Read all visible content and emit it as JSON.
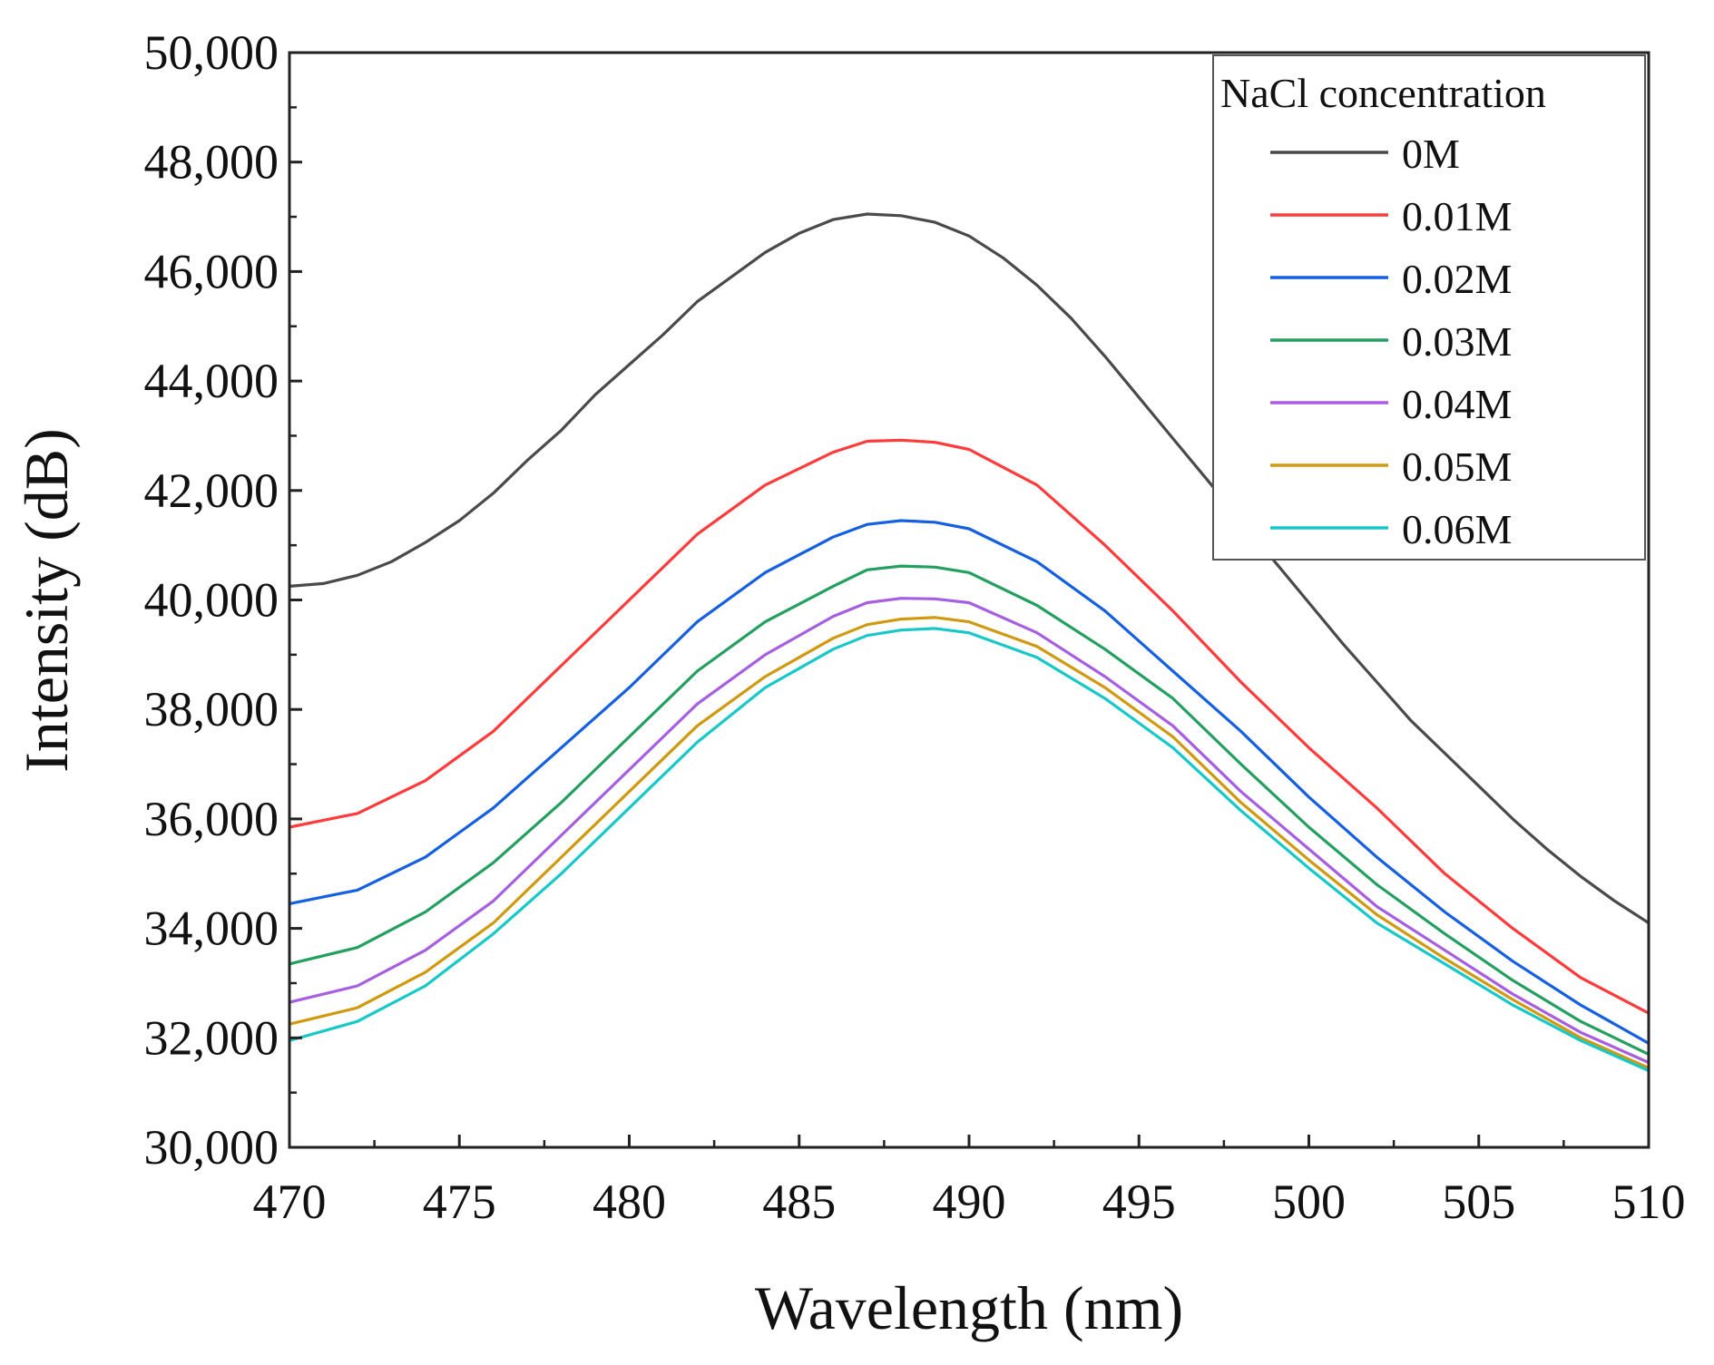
{
  "chart_data": {
    "type": "line",
    "title": "",
    "xlabel": "Wavelength (nm)",
    "ylabel": "Intensity (dB)",
    "xlim": [
      470,
      510
    ],
    "ylim": [
      30000,
      50000
    ],
    "xticks": [
      470,
      475,
      480,
      485,
      490,
      495,
      500,
      505,
      510
    ],
    "yticks": [
      30000,
      32000,
      34000,
      36000,
      38000,
      40000,
      42000,
      44000,
      46000,
      48000,
      50000
    ],
    "xtick_labels": [
      "470",
      "475",
      "480",
      "485",
      "490",
      "495",
      "500",
      "505",
      "510"
    ],
    "ytick_labels": [
      "30,000",
      "32,000",
      "34,000",
      "36,000",
      "38,000",
      "40,000",
      "42,000",
      "44,000",
      "46,000",
      "48,000",
      "50,000"
    ],
    "grid": false,
    "legend": {
      "title": "NaCl concentration",
      "placement": "top-right"
    },
    "series": [
      {
        "name": "0M",
        "color": "#4a4a4a",
        "x": [
          470,
          471,
          472,
          473,
          474,
          475,
          476,
          477,
          478,
          479,
          480,
          481,
          482,
          483,
          484,
          485,
          486,
          487,
          488,
          489,
          490,
          491,
          492,
          493,
          494,
          495,
          496,
          497,
          498,
          499,
          500,
          501,
          502,
          503,
          504,
          505,
          506,
          507,
          508,
          509,
          510
        ],
        "y": [
          40250,
          40300,
          40450,
          40700,
          41050,
          41450,
          41950,
          42550,
          43100,
          43750,
          44300,
          44850,
          45450,
          45900,
          46350,
          46700,
          46950,
          47050,
          47020,
          46900,
          46650,
          46250,
          45750,
          45150,
          44450,
          43700,
          42950,
          42200,
          41450,
          40700,
          39950,
          39200,
          38500,
          37800,
          37200,
          36600,
          36000,
          35450,
          34950,
          34500,
          34100
        ]
      },
      {
        "name": "0.01M",
        "color": "#ff3b3b",
        "x": [
          470,
          472,
          474,
          476,
          478,
          480,
          482,
          484,
          486,
          487,
          488,
          489,
          490,
          492,
          494,
          496,
          498,
          500,
          502,
          504,
          506,
          508,
          510
        ],
        "y": [
          35850,
          36100,
          36700,
          37600,
          38800,
          40000,
          41200,
          42100,
          42700,
          42900,
          42920,
          42880,
          42750,
          42100,
          41000,
          39800,
          38500,
          37300,
          36200,
          35000,
          34000,
          33100,
          32450
        ]
      },
      {
        "name": "0.02M",
        "color": "#1560e0",
        "x": [
          470,
          472,
          474,
          476,
          478,
          480,
          482,
          484,
          486,
          487,
          488,
          489,
          490,
          492,
          494,
          496,
          498,
          500,
          502,
          504,
          506,
          508,
          510
        ],
        "y": [
          34450,
          34700,
          35300,
          36200,
          37300,
          38400,
          39600,
          40500,
          41150,
          41380,
          41450,
          41420,
          41300,
          40700,
          39800,
          38700,
          37600,
          36400,
          35300,
          34300,
          33400,
          32600,
          31900
        ]
      },
      {
        "name": "0.03M",
        "color": "#23a060",
        "x": [
          470,
          472,
          474,
          476,
          478,
          480,
          482,
          484,
          486,
          487,
          488,
          489,
          490,
          492,
          494,
          496,
          498,
          500,
          502,
          504,
          506,
          508,
          510
        ],
        "y": [
          33350,
          33650,
          34300,
          35200,
          36300,
          37500,
          38700,
          39600,
          40250,
          40550,
          40620,
          40600,
          40500,
          39900,
          39100,
          38200,
          37000,
          35850,
          34800,
          33900,
          33050,
          32300,
          31700
        ]
      },
      {
        "name": "0.04M",
        "color": "#a65fe0",
        "x": [
          470,
          472,
          474,
          476,
          478,
          480,
          482,
          484,
          486,
          487,
          488,
          489,
          490,
          492,
          494,
          496,
          498,
          500,
          502,
          504,
          506,
          508,
          510
        ],
        "y": [
          32650,
          32950,
          33600,
          34500,
          35700,
          36900,
          38100,
          39000,
          39700,
          39950,
          40030,
          40020,
          39950,
          39400,
          38600,
          37700,
          36500,
          35450,
          34400,
          33600,
          32800,
          32100,
          31550
        ]
      },
      {
        "name": "0.05M",
        "color": "#d09a10",
        "x": [
          470,
          472,
          474,
          476,
          478,
          480,
          482,
          484,
          486,
          487,
          488,
          489,
          490,
          492,
          494,
          496,
          498,
          500,
          502,
          504,
          506,
          508,
          510
        ],
        "y": [
          32250,
          32550,
          33200,
          34100,
          35300,
          36500,
          37700,
          38600,
          39300,
          39550,
          39650,
          39680,
          39600,
          39150,
          38400,
          37500,
          36300,
          35250,
          34250,
          33450,
          32700,
          32000,
          31450
        ]
      },
      {
        "name": "0.06M",
        "color": "#18c8c8",
        "x": [
          470,
          472,
          474,
          476,
          478,
          480,
          482,
          484,
          486,
          487,
          488,
          489,
          490,
          492,
          494,
          496,
          498,
          500,
          502,
          504,
          506,
          508,
          510
        ],
        "y": [
          31950,
          32300,
          32950,
          33900,
          35000,
          36200,
          37400,
          38400,
          39100,
          39350,
          39450,
          39480,
          39400,
          38950,
          38200,
          37300,
          36150,
          35100,
          34100,
          33350,
          32600,
          31950,
          31400
        ]
      }
    ]
  }
}
